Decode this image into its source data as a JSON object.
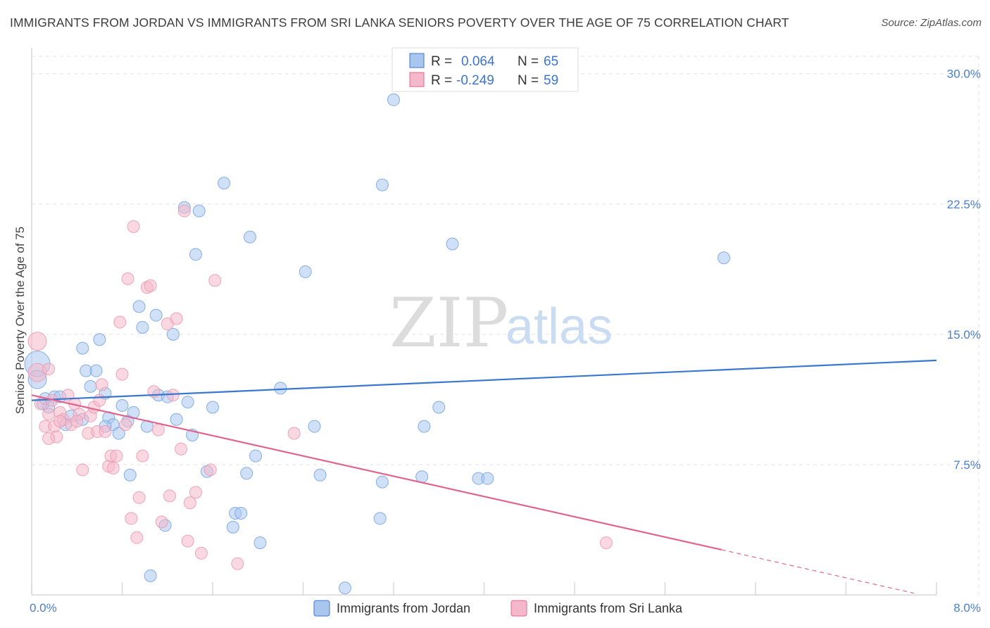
{
  "header": {
    "title": "IMMIGRANTS FROM JORDAN VS IMMIGRANTS FROM SRI LANKA SENIORS POVERTY OVER THE AGE OF 75 CORRELATION CHART",
    "source": "Source: ZipAtlas.com"
  },
  "watermark": {
    "zip": "ZIP",
    "atlas": "atlas"
  },
  "legend": {
    "rows": [
      {
        "r_label": "R =",
        "r_value": "0.064",
        "n_label": "N =",
        "n_value": "65",
        "color": "#a9c6ef"
      },
      {
        "r_label": "R =",
        "r_value": "-0.249",
        "n_label": "N =",
        "n_value": "59",
        "color": "#f5b8ca"
      }
    ]
  },
  "bottom_legend": {
    "jordan": "Immigrants from Jordan",
    "srilanka": "Immigrants from Sri Lanka"
  },
  "chart_data": {
    "type": "scatter",
    "title": "IMMIGRANTS FROM JORDAN VS IMMIGRANTS FROM SRI LANKA SENIORS POVERTY OVER THE AGE OF 75 CORRELATION CHART",
    "ylabel": "Seniors Poverty Over the Age of 75",
    "xlabel": "",
    "xlim": [
      0,
      8
    ],
    "ylim": [
      0,
      31
    ],
    "x_tick_labels": [
      "0.0%",
      "8.0%"
    ],
    "y_ticks": [
      7.5,
      15,
      22.5,
      30
    ],
    "y_tick_labels": [
      "7.5%",
      "15.0%",
      "22.5%",
      "30.0%"
    ],
    "grid": true,
    "colors": {
      "jordan": "#a9c6ef",
      "jordan_line": "#3a78cf",
      "srilanka": "#f5b8ca",
      "srilanka_line": "#e0648e"
    },
    "series": [
      {
        "name": "Immigrants from Jordan",
        "r": 0.064,
        "n": 65,
        "trend": {
          "x": [
            0,
            8
          ],
          "y": [
            11.2,
            13.5
          ]
        },
        "points": [
          [
            0.05,
            13.3,
            3
          ],
          [
            0.05,
            12.4,
            2
          ],
          [
            0.1,
            11.0,
            1
          ],
          [
            0.12,
            11.3,
            1
          ],
          [
            0.15,
            10.8,
            1
          ],
          [
            0.2,
            11.4,
            1
          ],
          [
            0.25,
            11.4,
            1
          ],
          [
            0.35,
            10.3,
            1
          ],
          [
            0.3,
            9.8,
            1
          ],
          [
            0.45,
            10.1,
            1
          ],
          [
            0.45,
            14.2,
            1
          ],
          [
            0.48,
            12.9,
            1
          ],
          [
            0.57,
            12.9,
            1
          ],
          [
            0.6,
            14.7,
            1
          ],
          [
            0.52,
            12.0,
            1
          ],
          [
            0.65,
            11.6,
            1
          ],
          [
            0.68,
            10.2,
            1
          ],
          [
            0.72,
            9.8,
            1
          ],
          [
            0.77,
            9.3,
            1
          ],
          [
            0.8,
            10.9,
            1
          ],
          [
            0.85,
            10.0,
            1
          ],
          [
            0.9,
            10.5,
            1
          ],
          [
            0.95,
            16.6,
            1
          ],
          [
            0.98,
            15.4,
            1
          ],
          [
            1.02,
            9.7,
            1
          ],
          [
            0.87,
            6.9,
            1
          ],
          [
            1.1,
            16.1,
            1
          ],
          [
            1.12,
            11.5,
            1
          ],
          [
            1.2,
            11.4,
            1
          ],
          [
            1.25,
            15.0,
            1
          ],
          [
            1.28,
            10.1,
            1
          ],
          [
            1.35,
            22.3,
            1
          ],
          [
            1.38,
            11.1,
            1
          ],
          [
            1.42,
            9.2,
            1
          ],
          [
            1.45,
            19.6,
            1
          ],
          [
            1.48,
            22.1,
            1
          ],
          [
            1.18,
            4.0,
            1
          ],
          [
            1.05,
            1.1,
            1
          ],
          [
            1.55,
            7.1,
            1
          ],
          [
            1.6,
            10.8,
            1
          ],
          [
            1.7,
            23.7,
            1
          ],
          [
            1.78,
            3.9,
            1
          ],
          [
            1.8,
            4.7,
            1
          ],
          [
            1.85,
            4.7,
            1
          ],
          [
            1.9,
            7.0,
            1
          ],
          [
            1.93,
            20.6,
            1
          ],
          [
            1.98,
            8.0,
            1
          ],
          [
            2.02,
            3.0,
            1
          ],
          [
            2.2,
            11.9,
            1
          ],
          [
            2.42,
            18.6,
            1
          ],
          [
            2.5,
            9.7,
            1
          ],
          [
            2.55,
            6.9,
            1
          ],
          [
            2.77,
            0.4,
            1
          ],
          [
            3.08,
            4.4,
            1
          ],
          [
            3.1,
            6.5,
            1
          ],
          [
            3.1,
            23.6,
            1
          ],
          [
            3.45,
            6.8,
            1
          ],
          [
            3.47,
            9.7,
            1
          ],
          [
            3.6,
            10.8,
            1
          ],
          [
            3.72,
            20.2,
            1
          ],
          [
            3.95,
            6.7,
            1
          ],
          [
            4.03,
            6.7,
            1
          ],
          [
            6.12,
            19.4,
            1
          ],
          [
            3.2,
            28.5,
            1
          ],
          [
            0.65,
            9.7,
            1
          ]
        ]
      },
      {
        "name": "Immigrants from Sri Lanka",
        "r": -0.249,
        "n": 59,
        "trend": {
          "x": [
            0,
            6.1
          ],
          "y": [
            11.5,
            2.6
          ]
        },
        "trend_dashed": {
          "x": [
            6.1,
            7.8
          ],
          "y": [
            2.6,
            0.1
          ]
        },
        "points": [
          [
            0.05,
            14.6,
            2
          ],
          [
            0.05,
            12.8,
            2
          ],
          [
            0.08,
            11.0,
            1
          ],
          [
            0.12,
            9.7,
            1
          ],
          [
            0.15,
            10.4,
            1
          ],
          [
            0.18,
            11.2,
            1
          ],
          [
            0.2,
            9.7,
            1
          ],
          [
            0.22,
            9.1,
            1
          ],
          [
            0.25,
            10.5,
            1
          ],
          [
            0.28,
            10.1,
            1
          ],
          [
            0.32,
            11.5,
            1
          ],
          [
            0.35,
            9.8,
            1
          ],
          [
            0.38,
            11.0,
            1
          ],
          [
            0.42,
            10.4,
            1
          ],
          [
            0.45,
            7.2,
            1
          ],
          [
            0.5,
            9.3,
            1
          ],
          [
            0.52,
            10.3,
            1
          ],
          [
            0.55,
            10.8,
            1
          ],
          [
            0.58,
            9.4,
            1
          ],
          [
            0.62,
            12.1,
            1
          ],
          [
            0.65,
            9.4,
            1
          ],
          [
            0.68,
            7.4,
            1
          ],
          [
            0.7,
            8.0,
            1
          ],
          [
            0.72,
            7.3,
            1
          ],
          [
            0.75,
            8.0,
            1
          ],
          [
            0.78,
            15.7,
            1
          ],
          [
            0.8,
            12.7,
            1
          ],
          [
            0.83,
            9.8,
            1
          ],
          [
            0.85,
            18.2,
            1
          ],
          [
            0.88,
            4.4,
            1
          ],
          [
            0.9,
            21.2,
            1
          ],
          [
            0.93,
            3.3,
            1
          ],
          [
            0.95,
            5.6,
            1
          ],
          [
            0.98,
            8.0,
            1
          ],
          [
            1.02,
            17.7,
            1
          ],
          [
            1.05,
            17.8,
            1
          ],
          [
            1.08,
            11.7,
            1
          ],
          [
            1.12,
            9.5,
            1
          ],
          [
            1.15,
            4.2,
            1
          ],
          [
            1.2,
            15.6,
            1
          ],
          [
            1.22,
            5.7,
            1
          ],
          [
            1.25,
            11.5,
            1
          ],
          [
            1.28,
            15.9,
            1
          ],
          [
            1.32,
            8.4,
            1
          ],
          [
            1.35,
            22.1,
            1
          ],
          [
            1.38,
            3.1,
            1
          ],
          [
            1.4,
            5.3,
            1
          ],
          [
            1.45,
            5.9,
            1
          ],
          [
            1.5,
            2.4,
            1
          ],
          [
            1.58,
            7.2,
            1
          ],
          [
            1.62,
            18.1,
            1
          ],
          [
            1.82,
            1.8,
            1
          ],
          [
            2.32,
            9.3,
            1
          ],
          [
            5.08,
            3.0,
            1
          ],
          [
            0.15,
            9.0,
            1
          ],
          [
            0.25,
            10.0,
            1
          ],
          [
            0.4,
            10.0,
            1
          ],
          [
            0.6,
            11.2,
            1
          ],
          [
            0.15,
            13.0,
            1
          ]
        ]
      }
    ]
  }
}
